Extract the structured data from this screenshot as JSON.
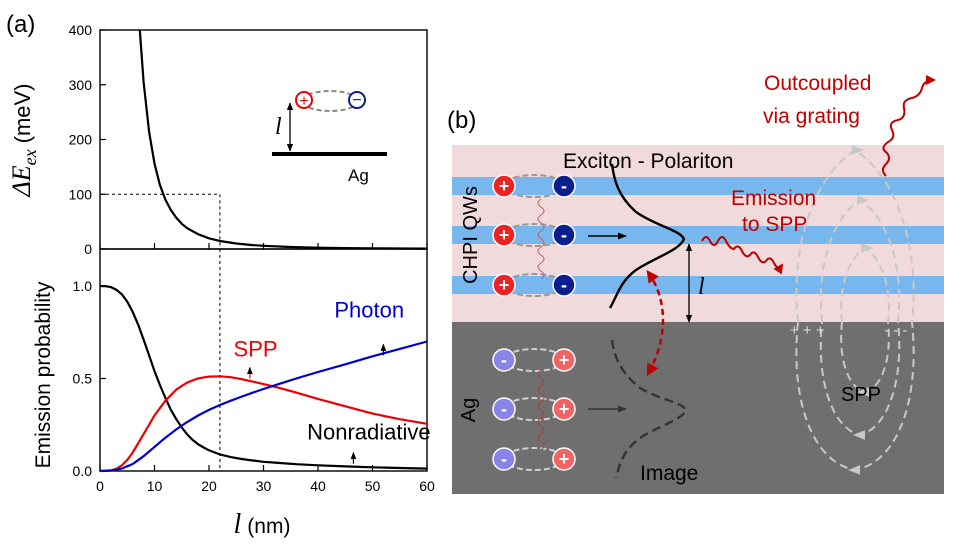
{
  "panel_a": {
    "label": "(a)",
    "top_ylabel_symbol": "ΔE",
    "top_ylabel_sub": "ex",
    "top_ylabel_unit": "(meV)",
    "bottom_ylabel": "Emission probability",
    "xlabel_symbol": "l",
    "xlabel_unit": "(nm)",
    "inset": {
      "plus": "+",
      "minus": "−",
      "distance_label": "l",
      "metal_label": "Ag"
    },
    "guide": {
      "x": 22,
      "top_y": 100
    }
  },
  "chart_data": [
    {
      "type": "line",
      "title": "",
      "xlabel": "l (nm)",
      "ylabel": "ΔEex (meV)",
      "xlim": [
        0,
        60
      ],
      "ylim": [
        0,
        400
      ],
      "xticks": [
        0,
        10,
        20,
        30,
        40,
        50,
        60
      ],
      "yticks": [
        0,
        100,
        200,
        300,
        400
      ],
      "series": [
        {
          "x": [
            7.3,
            8,
            9,
            10,
            11,
            12,
            13,
            14,
            15,
            16,
            18,
            20,
            22,
            25,
            28,
            30,
            35,
            40,
            45,
            50,
            55,
            60
          ],
          "y": [
            400,
            305,
            214,
            156,
            117,
            90,
            71,
            57,
            46,
            38,
            27,
            19.5,
            14.7,
            10,
            7.1,
            5.8,
            3.6,
            2.4,
            1.7,
            1.25,
            0.94,
            0.72
          ],
          "color": "#000000"
        }
      ]
    },
    {
      "type": "line",
      "title": "",
      "xlabel": "l (nm)",
      "ylabel": "Emission probability",
      "xlim": [
        0,
        60
      ],
      "ylim": [
        0,
        1.2
      ],
      "xticks": [
        0,
        10,
        20,
        30,
        40,
        50,
        60
      ],
      "yticks": [
        0.0,
        0.5,
        1.0
      ],
      "series": [
        {
          "name": "Nonradiative",
          "color": "#000000",
          "x": [
            0,
            1,
            2,
            3,
            4,
            5,
            6,
            7,
            8,
            9,
            10,
            11,
            12,
            13,
            14,
            15,
            16,
            17,
            18,
            19,
            20,
            22,
            24,
            26,
            28,
            30,
            33,
            36,
            40,
            45,
            50,
            55,
            60
          ],
          "y": [
            1.0,
            0.999,
            0.994,
            0.98,
            0.955,
            0.915,
            0.86,
            0.79,
            0.71,
            0.625,
            0.54,
            0.465,
            0.395,
            0.33,
            0.28,
            0.235,
            0.198,
            0.168,
            0.145,
            0.127,
            0.112,
            0.09,
            0.075,
            0.065,
            0.057,
            0.05,
            0.043,
            0.037,
            0.031,
            0.025,
            0.02,
            0.016,
            0.013
          ]
        },
        {
          "name": "SPP",
          "color": "#ee0000",
          "x": [
            0,
            2,
            3,
            4,
            5,
            6,
            7,
            8,
            9,
            10,
            11,
            12,
            13,
            14,
            15,
            16,
            17,
            18,
            19,
            20,
            22,
            24,
            26,
            28,
            30,
            33,
            36,
            40,
            45,
            50,
            55,
            60
          ],
          "y": [
            0,
            0.003,
            0.012,
            0.03,
            0.06,
            0.1,
            0.15,
            0.2,
            0.25,
            0.3,
            0.34,
            0.38,
            0.41,
            0.44,
            0.46,
            0.478,
            0.49,
            0.5,
            0.506,
            0.51,
            0.512,
            0.507,
            0.496,
            0.483,
            0.47,
            0.448,
            0.424,
            0.39,
            0.35,
            0.31,
            0.28,
            0.255
          ]
        },
        {
          "name": "Photon",
          "color": "#0000cc",
          "x": [
            0,
            2,
            4,
            6,
            8,
            10,
            12,
            14,
            16,
            18,
            20,
            22,
            24,
            26,
            28,
            30,
            33,
            36,
            40,
            45,
            50,
            55,
            60
          ],
          "y": [
            0,
            0.002,
            0.013,
            0.038,
            0.08,
            0.13,
            0.18,
            0.225,
            0.265,
            0.3,
            0.33,
            0.357,
            0.38,
            0.402,
            0.423,
            0.443,
            0.472,
            0.5,
            0.535,
            0.577,
            0.62,
            0.66,
            0.7
          ]
        }
      ],
      "labels": [
        {
          "text": "SPP",
          "x": 24.5,
          "y": 0.62,
          "color": "#ee0000",
          "arrow_to_x": 27.5,
          "arrow_to_y": 0.5
        },
        {
          "text": "Photon",
          "x": 43,
          "y": 0.83,
          "color": "#0000cc",
          "arrow_to_x": 52,
          "arrow_to_y": 0.625
        },
        {
          "text": "Nonradiative",
          "x": 38,
          "y": 0.17,
          "color": "#000000",
          "arrow_to_x": 46.5,
          "arrow_to_y": 0.04
        }
      ]
    }
  ],
  "panel_b": {
    "label": "(b)",
    "exciton_polariton": "Exciton - Polariton",
    "qw_label": "CHPI QWs",
    "emission_spp": [
      "Emission",
      "to SPP"
    ],
    "outcoupled": [
      "Outcoupled",
      "via grating"
    ],
    "ag_label": "Ag",
    "image_label": "Image",
    "spp_label": "SPP",
    "distance_label": "l",
    "plus": "+",
    "minus": "-",
    "charge_plus_row": "+ + +",
    "charge_minus_row": "- - -",
    "colors": {
      "qw_region": "#f1dadb",
      "qw_stripe": "#78b6ee",
      "metal": "#6f6f6f",
      "dark_red": "#c00000",
      "plus_fill": "#ee2222",
      "minus_fill": "#0b1f8e",
      "image_plus": "#f06464",
      "image_minus": "#8b84e8"
    }
  }
}
